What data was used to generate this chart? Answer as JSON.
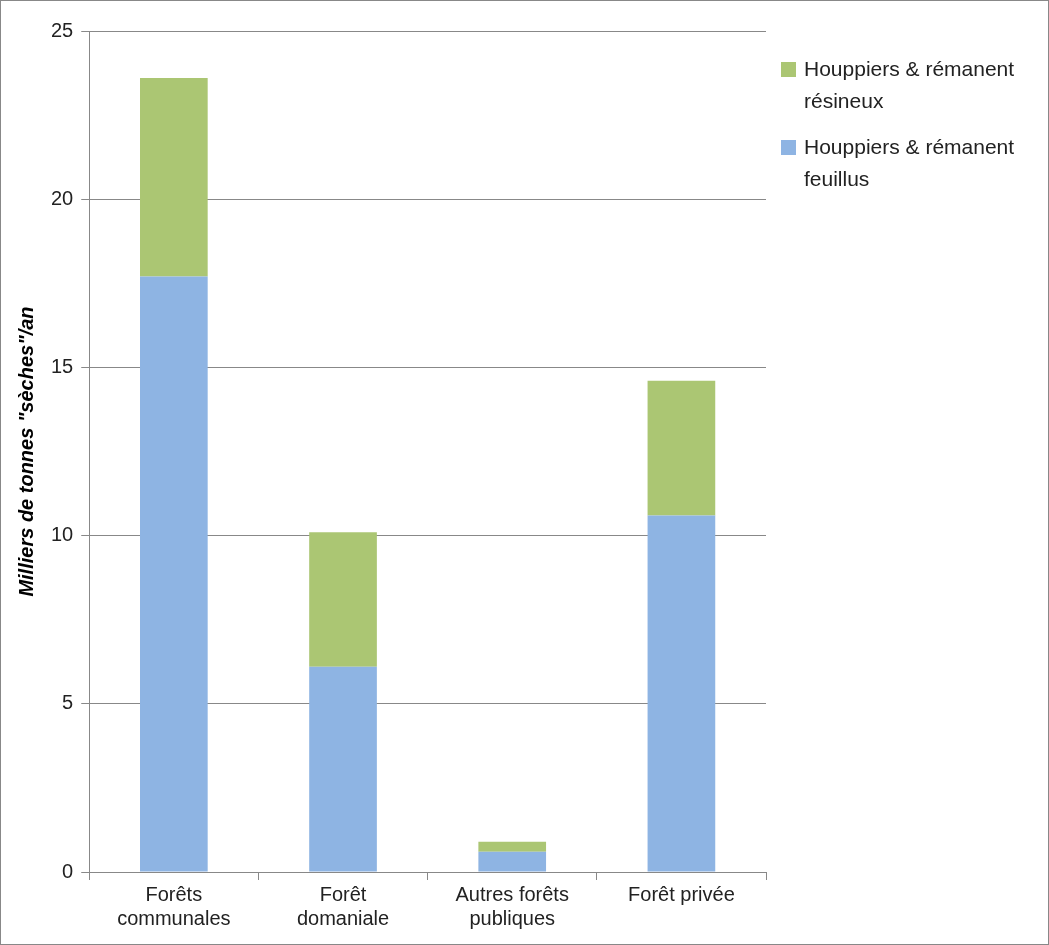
{
  "chart_data": {
    "type": "bar",
    "stacked": true,
    "ylabel": "Milliers de tonnes \"sèches\"/an",
    "categories": [
      "Forêts communales",
      "Forêt domaniale",
      "Autres forêts publiques",
      "Forêt privée"
    ],
    "series": [
      {
        "name": "Houppiers & rémanent feuillus",
        "color": "#8eb4e3",
        "values": [
          17.7,
          6.1,
          0.6,
          10.6
        ]
      },
      {
        "name": "Houppiers & rémanent résineux",
        "color": "#abc673",
        "values": [
          5.9,
          4.0,
          0.3,
          4.0
        ]
      }
    ],
    "ylim": [
      0,
      25
    ],
    "yticks": [
      0,
      5,
      10,
      15,
      20,
      25
    ],
    "grid": "y",
    "legend": "top right"
  }
}
